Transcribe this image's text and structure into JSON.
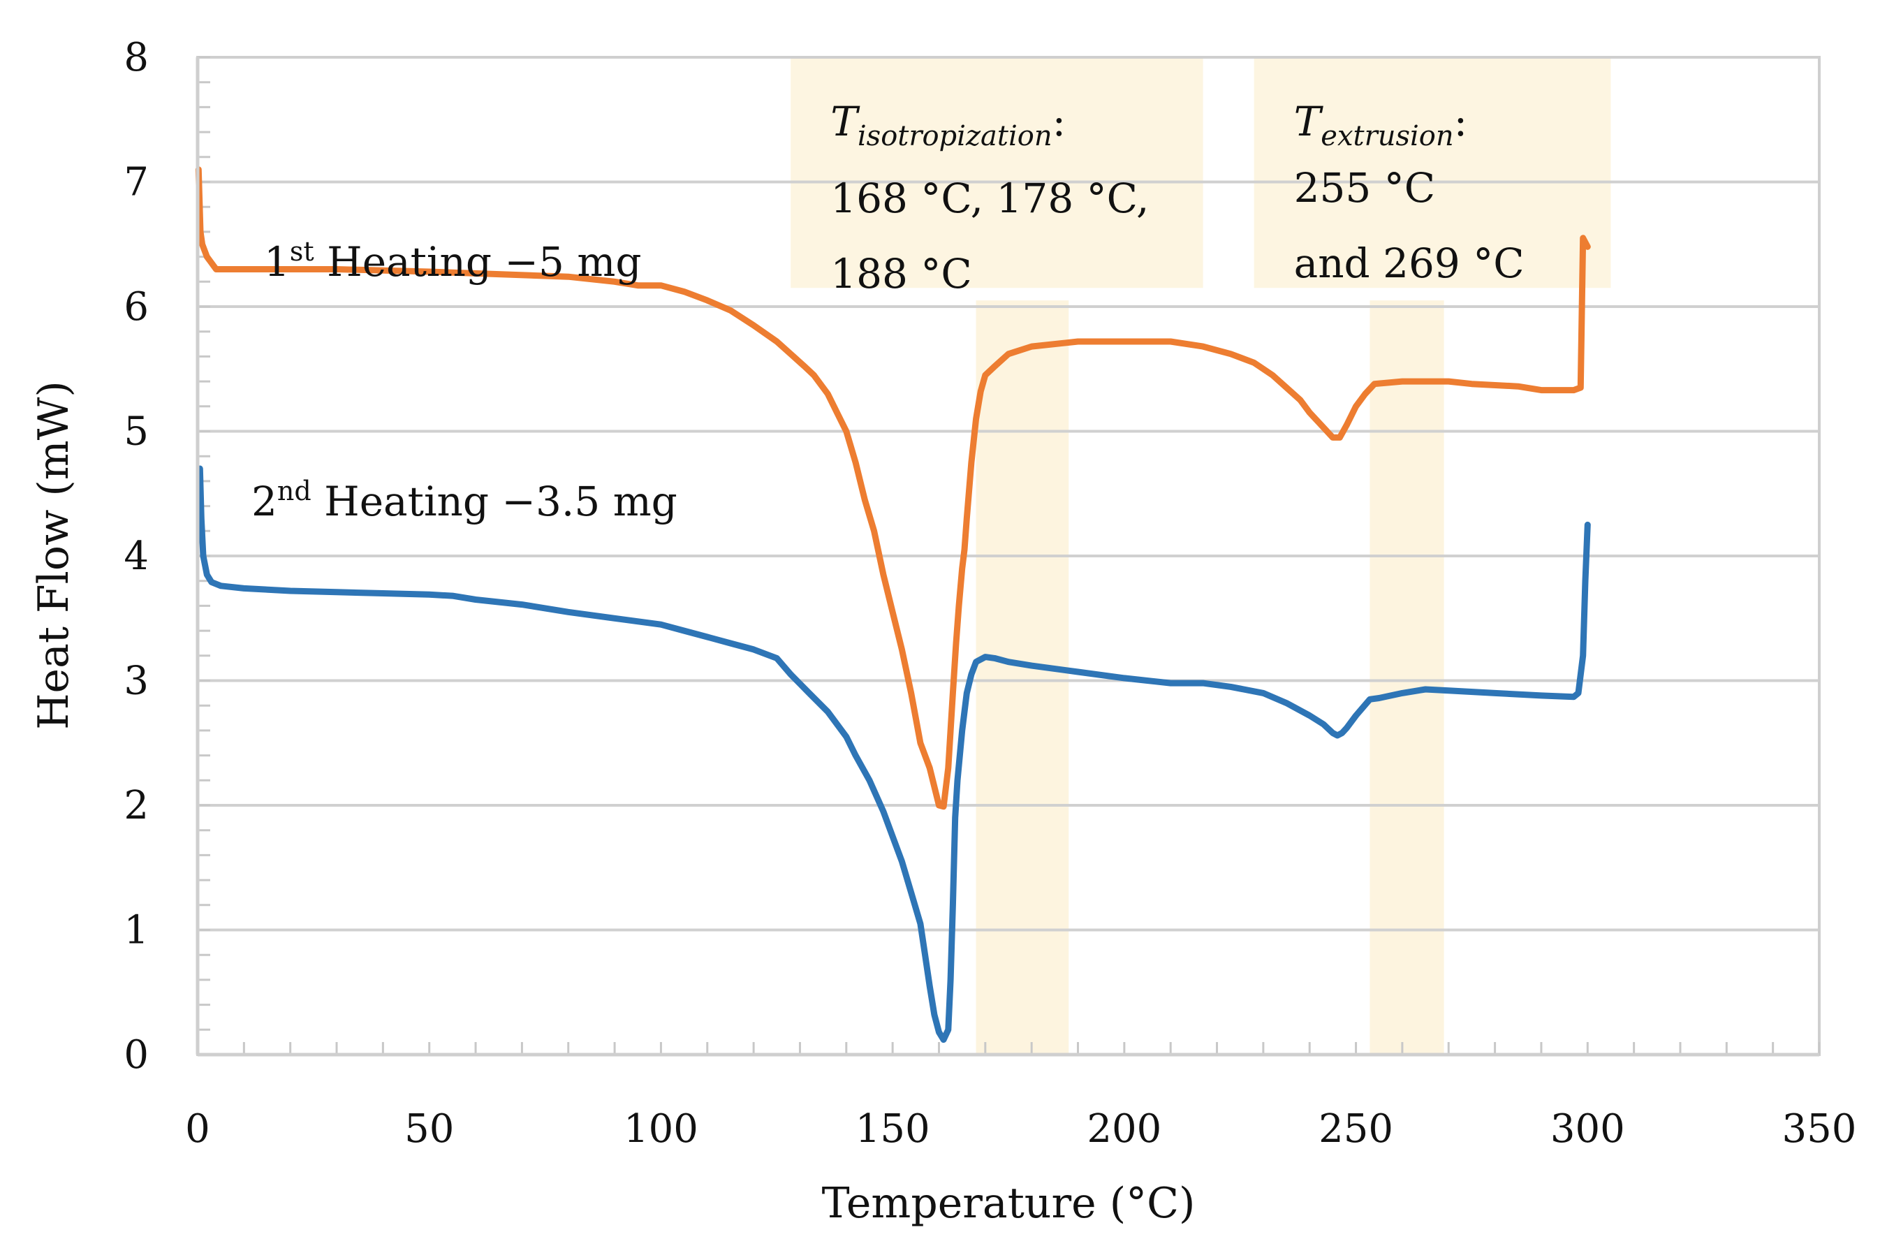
{
  "chart_data": {
    "type": "line",
    "title": "",
    "xlabel": "Temperature (°C)",
    "ylabel": "Heat Flow (mW)",
    "xlim": [
      0,
      350
    ],
    "ylim": [
      0,
      8
    ],
    "xticks": [
      0,
      50,
      100,
      150,
      200,
      250,
      300,
      350
    ],
    "yticks": [
      0,
      1,
      2,
      3,
      4,
      5,
      6,
      7,
      8
    ],
    "grid": "horizontal",
    "shaded_regions": [
      {
        "x": [
          168,
          188
        ],
        "y": [
          0,
          6.05
        ]
      },
      {
        "x": [
          253,
          269
        ],
        "y": [
          0,
          6.05
        ]
      }
    ],
    "annotations": [
      {
        "name": "isotropization",
        "symbol": "T",
        "subscript": "isotropization",
        "suffix": ":",
        "lines": [
          "168 °C, 178 °C,",
          "188 °C"
        ],
        "box_x": [
          128,
          217
        ],
        "box_y": [
          6.15,
          8
        ]
      },
      {
        "name": "extrusion",
        "symbol": "T",
        "subscript": "extrusion",
        "suffix": ":",
        "lines": [
          "255 °C",
          "and 269 °C"
        ],
        "box_x": [
          228,
          305
        ],
        "box_y": [
          6.15,
          8
        ]
      }
    ],
    "series": [
      {
        "name": "1st Heating −5 mg",
        "label_parts": {
          "num": "1",
          "sup": "st",
          "rest": " Heating −5 mg"
        },
        "color": "#ED7D31",
        "x": [
          0.2,
          0.6,
          1,
          2,
          3,
          4,
          10,
          30,
          50,
          65,
          80,
          90,
          95,
          100,
          105,
          110,
          115,
          120,
          125,
          128,
          131,
          133,
          136,
          138,
          140,
          142,
          144,
          146,
          148,
          150,
          152,
          154,
          156,
          158,
          160,
          161,
          162,
          162.5,
          163,
          163.7,
          164.3,
          165,
          165.5,
          166,
          167,
          168,
          169,
          170,
          172,
          175,
          180,
          190,
          200,
          210,
          217,
          223,
          228,
          232,
          235,
          238,
          240,
          243,
          245,
          246.5,
          248,
          250,
          252,
          254,
          260,
          270,
          275,
          285,
          290,
          297,
          298.5,
          299,
          300
        ],
        "values": [
          7.1,
          6.6,
          6.5,
          6.4,
          6.35,
          6.3,
          6.3,
          6.3,
          6.28,
          6.26,
          6.24,
          6.2,
          6.17,
          6.17,
          6.12,
          6.05,
          5.97,
          5.85,
          5.72,
          5.62,
          5.52,
          5.45,
          5.3,
          5.15,
          5.0,
          4.75,
          4.45,
          4.2,
          3.85,
          3.55,
          3.25,
          2.9,
          2.5,
          2.3,
          2.0,
          1.99,
          2.3,
          2.6,
          2.9,
          3.3,
          3.6,
          3.9,
          4.05,
          4.3,
          4.75,
          5.1,
          5.32,
          5.45,
          5.52,
          5.62,
          5.68,
          5.72,
          5.72,
          5.72,
          5.68,
          5.62,
          5.55,
          5.45,
          5.35,
          5.25,
          5.15,
          5.03,
          4.95,
          4.95,
          5.05,
          5.2,
          5.3,
          5.38,
          5.4,
          5.4,
          5.38,
          5.36,
          5.33,
          5.33,
          5.35,
          6.55,
          6.48
        ]
      },
      {
        "name": "2nd Heating −3.5 mg",
        "label_parts": {
          "num": "2",
          "sup": "nd",
          "rest": " Heating −3.5 mg"
        },
        "color": "#2E75B6",
        "x": [
          0.5,
          0.8,
          1.2,
          2,
          3,
          5,
          10,
          20,
          30,
          40,
          50,
          55,
          60,
          70,
          80,
          90,
          100,
          105,
          110,
          115,
          120,
          125,
          128,
          132,
          136,
          140,
          142,
          145,
          148,
          150,
          152,
          154,
          156,
          157,
          158,
          159,
          160,
          161,
          162,
          162.5,
          163,
          163.5,
          164,
          165,
          166,
          167,
          168,
          170,
          172,
          175,
          180,
          190,
          200,
          210,
          217,
          223,
          230,
          235,
          240,
          243,
          245,
          246,
          247,
          248,
          250,
          253,
          255,
          260,
          265,
          270,
          280,
          290,
          297,
          298,
          299,
          299.5,
          300
        ],
        "values": [
          4.7,
          4.3,
          4.0,
          3.85,
          3.79,
          3.76,
          3.74,
          3.72,
          3.71,
          3.7,
          3.69,
          3.68,
          3.65,
          3.61,
          3.55,
          3.5,
          3.45,
          3.4,
          3.35,
          3.3,
          3.25,
          3.18,
          3.05,
          2.9,
          2.75,
          2.55,
          2.4,
          2.2,
          1.95,
          1.75,
          1.55,
          1.3,
          1.05,
          0.8,
          0.55,
          0.32,
          0.18,
          0.12,
          0.2,
          0.6,
          1.2,
          1.9,
          2.2,
          2.6,
          2.9,
          3.05,
          3.15,
          3.19,
          3.18,
          3.15,
          3.12,
          3.07,
          3.02,
          2.98,
          2.98,
          2.95,
          2.9,
          2.82,
          2.72,
          2.65,
          2.58,
          2.56,
          2.58,
          2.62,
          2.72,
          2.85,
          2.86,
          2.9,
          2.93,
          2.92,
          2.9,
          2.88,
          2.87,
          2.9,
          3.2,
          3.8,
          4.25
        ]
      }
    ]
  }
}
